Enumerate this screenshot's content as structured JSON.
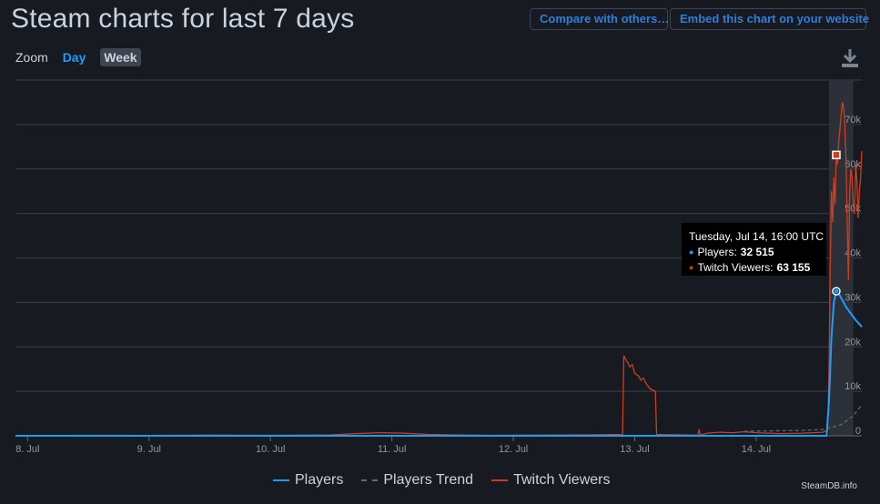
{
  "header": {
    "title": "Steam charts for last 7 days",
    "compare_label": "Compare with others…",
    "embed_label": "Embed this chart on your website"
  },
  "zoom": {
    "label": "Zoom",
    "options": [
      "Day",
      "Week"
    ],
    "selected": "Week"
  },
  "icons": {
    "download": "download-icon"
  },
  "colors": {
    "players": "#1a9fff",
    "trend": "#5e6b77",
    "twitch": "#d13d1c",
    "link": "#2f7fd8"
  },
  "tooltip": {
    "date": "Tuesday, Jul 14, 16:00 UTC",
    "players_label": "Players:",
    "players_value": "32 515",
    "twitch_label": "Twitch Viewers:",
    "twitch_value": "63 155"
  },
  "legend": {
    "players": "Players",
    "trend": "Players Trend",
    "twitch": "Twitch Viewers"
  },
  "credit": "SteamDB.info",
  "chart_data": {
    "type": "line",
    "x_ticks": [
      "8. Jul",
      "9. Jul",
      "10. Jul",
      "11. Jul",
      "12. Jul",
      "13. Jul",
      "14. Jul"
    ],
    "y_ticks": [
      "0",
      "10k",
      "20k",
      "30k",
      "40k",
      "50k",
      "60k",
      "70k"
    ],
    "ylim": [
      0,
      80000
    ],
    "xlim": [
      7.9,
      14.87
    ],
    "highlight_x": [
      14.6,
      14.8
    ],
    "grid": true,
    "legend_position": "bottom",
    "series": [
      {
        "name": "Twitch Viewers",
        "color": "#d13d1c",
        "points": [
          [
            7.9,
            0
          ],
          [
            8.5,
            100
          ],
          [
            9.0,
            80
          ],
          [
            9.5,
            150
          ],
          [
            10.0,
            100
          ],
          [
            10.5,
            200
          ],
          [
            10.7,
            500
          ],
          [
            10.9,
            700
          ],
          [
            11.1,
            600
          ],
          [
            11.3,
            300
          ],
          [
            11.5,
            200
          ],
          [
            11.8,
            100
          ],
          [
            12.2,
            150
          ],
          [
            12.6,
            200
          ],
          [
            12.9,
            300
          ],
          [
            12.91,
            18000
          ],
          [
            12.93,
            17000
          ],
          [
            12.96,
            15500
          ],
          [
            12.98,
            16000
          ],
          [
            13.0,
            14000
          ],
          [
            13.03,
            13500
          ],
          [
            13.05,
            12500
          ],
          [
            13.07,
            13000
          ],
          [
            13.1,
            11500
          ],
          [
            13.13,
            10500
          ],
          [
            13.17,
            10000
          ],
          [
            13.18,
            300
          ],
          [
            13.4,
            200
          ],
          [
            13.52,
            150
          ],
          [
            13.53,
            1500
          ],
          [
            13.54,
            200
          ],
          [
            13.6,
            600
          ],
          [
            13.7,
            800
          ],
          [
            13.8,
            700
          ],
          [
            13.9,
            900
          ],
          [
            14.0,
            700
          ],
          [
            14.2,
            500
          ],
          [
            14.4,
            600
          ],
          [
            14.55,
            800
          ],
          [
            14.59,
            1200
          ],
          [
            14.6,
            15000
          ],
          [
            14.61,
            38000
          ],
          [
            14.62,
            55000
          ],
          [
            14.63,
            48000
          ],
          [
            14.64,
            58000
          ],
          [
            14.65,
            52000
          ],
          [
            14.66,
            63155
          ],
          [
            14.67,
            61000
          ],
          [
            14.68,
            66000
          ],
          [
            14.69,
            69000
          ],
          [
            14.7,
            72000
          ],
          [
            14.71,
            75000
          ],
          [
            14.72,
            74000
          ],
          [
            14.73,
            70000
          ],
          [
            14.74,
            62000
          ],
          [
            14.75,
            48000
          ],
          [
            14.76,
            35000
          ],
          [
            14.77,
            55000
          ],
          [
            14.78,
            60000
          ],
          [
            14.79,
            58000
          ],
          [
            14.8,
            52000
          ],
          [
            14.81,
            50000
          ],
          [
            14.82,
            61000
          ],
          [
            14.83,
            57000
          ],
          [
            14.84,
            49000
          ],
          [
            14.85,
            55000
          ],
          [
            14.86,
            58000
          ],
          [
            14.87,
            64000
          ]
        ]
      },
      {
        "name": "Players",
        "color": "#1a9fff",
        "points": [
          [
            7.9,
            0
          ],
          [
            14.58,
            0
          ],
          [
            14.6,
            8000
          ],
          [
            14.62,
            22000
          ],
          [
            14.64,
            30000
          ],
          [
            14.66,
            32515
          ],
          [
            14.68,
            32000
          ],
          [
            14.7,
            31000
          ],
          [
            14.74,
            29000
          ],
          [
            14.78,
            27500
          ],
          [
            14.82,
            26000
          ],
          [
            14.87,
            24500
          ]
        ]
      },
      {
        "name": "Players Trend",
        "color": "#5e6b77",
        "dashed": true,
        "points": [
          [
            13.9,
            1000
          ],
          [
            14.4,
            1200
          ],
          [
            14.55,
            1400
          ],
          [
            14.7,
            2500
          ],
          [
            14.8,
            4500
          ],
          [
            14.87,
            7000
          ]
        ]
      }
    ],
    "tooltip_x": 14.66
  }
}
